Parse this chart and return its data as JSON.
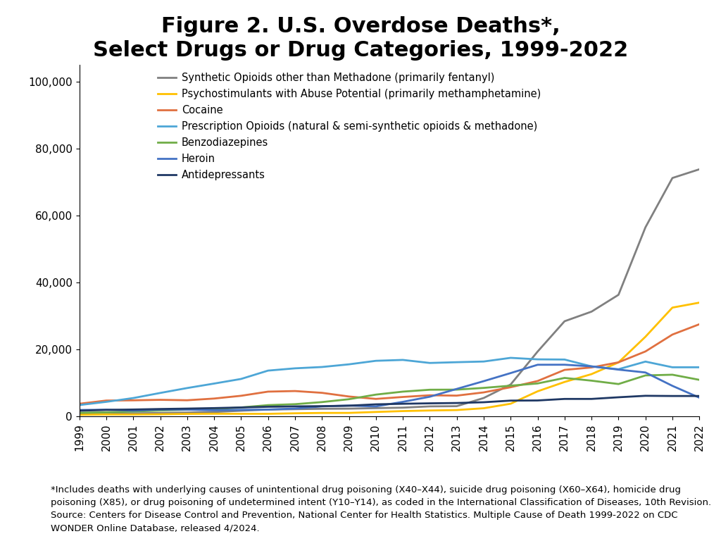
{
  "title": "Figure 2. U.S. Overdose Deaths*,\nSelect Drugs or Drug Categories, 1999-2022",
  "title_fontsize": 22,
  "title_fontweight": "bold",
  "years": [
    1999,
    2000,
    2001,
    2002,
    2003,
    2004,
    2005,
    2006,
    2007,
    2008,
    2009,
    2010,
    2011,
    2012,
    2013,
    2014,
    2015,
    2016,
    2017,
    2018,
    2019,
    2020,
    2021,
    2022
  ],
  "series": [
    {
      "label": "Synthetic Opioids other than Methadone (primarily fentanyl)",
      "color": "#808080",
      "linewidth": 2.0,
      "values": [
        730,
        786,
        957,
        1069,
        1212,
        1370,
        1742,
        2089,
        2213,
        2320,
        2365,
        2519,
        2666,
        3049,
        3105,
        5544,
        9580,
        19413,
        28466,
        31335,
        36359,
        56516,
        71238,
        73838
      ]
    },
    {
      "label": "Psychostimulants with Abuse Potential (primarily methamphetamine)",
      "color": "#FFC000",
      "linewidth": 2.0,
      "values": [
        547,
        622,
        617,
        683,
        808,
        847,
        828,
        824,
        980,
        1085,
        1095,
        1375,
        1640,
        1818,
        1949,
        2484,
        3837,
        7542,
        10333,
        12676,
        16167,
        23837,
        32537,
        34022
      ]
    },
    {
      "label": "Cocaine",
      "color": "#E07040",
      "linewidth": 2.0,
      "values": [
        3822,
        4782,
        4853,
        5002,
        4873,
        5381,
        6208,
        7448,
        7624,
        7093,
        5993,
        5272,
        5853,
        6356,
        6255,
        7219,
        8765,
        10619,
        13942,
        14666,
        16196,
        19447,
        24486,
        27569
      ]
    },
    {
      "label": "Prescription Opioids (natural & semi-synthetic opioids & methadone)",
      "color": "#4DA6D6",
      "linewidth": 2.0,
      "values": [
        3442,
        4400,
        5528,
        7052,
        8519,
        9857,
        11234,
        13724,
        14406,
        14800,
        15597,
        16651,
        16917,
        16007,
        16235,
        16439,
        17536,
        17087,
        17029,
        14975,
        14139,
        16416,
        14716,
        14716
      ]
    },
    {
      "label": "Benzodiazepines",
      "color": "#70AD47",
      "linewidth": 2.0,
      "values": [
        1135,
        1272,
        1509,
        1812,
        2067,
        2242,
        2717,
        3416,
        3700,
        4325,
        5186,
        6559,
        7446,
        8014,
        8045,
        8564,
        9221,
        9889,
        11537,
        10724,
        9711,
        12290,
        12499,
        10964
      ]
    },
    {
      "label": "Heroin",
      "color": "#4472C4",
      "linewidth": 2.0,
      "values": [
        1960,
        2048,
        1779,
        2089,
        2080,
        1878,
        2009,
        2090,
        2399,
        3041,
        3278,
        3036,
        4397,
        5925,
        8257,
        10574,
        12989,
        15469,
        15482,
        14996,
        14019,
        13165,
        9173,
        5646
      ]
    },
    {
      "label": "Antidepressants",
      "color": "#1F3864",
      "linewidth": 2.0,
      "values": [
        1749,
        1990,
        2105,
        2262,
        2380,
        2531,
        2723,
        2925,
        3042,
        3108,
        3250,
        3654,
        3820,
        3957,
        4050,
        4279,
        4767,
        4809,
        5269,
        5269,
        5765,
        6204,
        6143,
        6143
      ]
    }
  ],
  "ylim": [
    0,
    105000
  ],
  "yticks": [
    0,
    20000,
    40000,
    60000,
    80000,
    100000
  ],
  "ytick_labels": [
    "0",
    "20,000",
    "40,000",
    "60,000",
    "80,000",
    "100,000"
  ],
  "tick_fontsize": 11,
  "legend_fontsize": 10.5,
  "footnote": "*Includes deaths with underlying causes of unintentional drug poisoning (X40–X44), suicide drug poisoning (X60–X64), homicide drug\npoisoning (X85), or drug poisoning of undetermined intent (Y10–Y14), as coded in the International Classification of Diseases, 10th Revision.\nSource: Centers for Disease Control and Prevention, National Center for Health Statistics. Multiple Cause of Death 1999-2022 on CDC\nWONDER Online Database, released 4/2024.",
  "footnote_fontsize": 9.5,
  "background_color": "#FFFFFF",
  "plot_background": "#FFFFFF"
}
